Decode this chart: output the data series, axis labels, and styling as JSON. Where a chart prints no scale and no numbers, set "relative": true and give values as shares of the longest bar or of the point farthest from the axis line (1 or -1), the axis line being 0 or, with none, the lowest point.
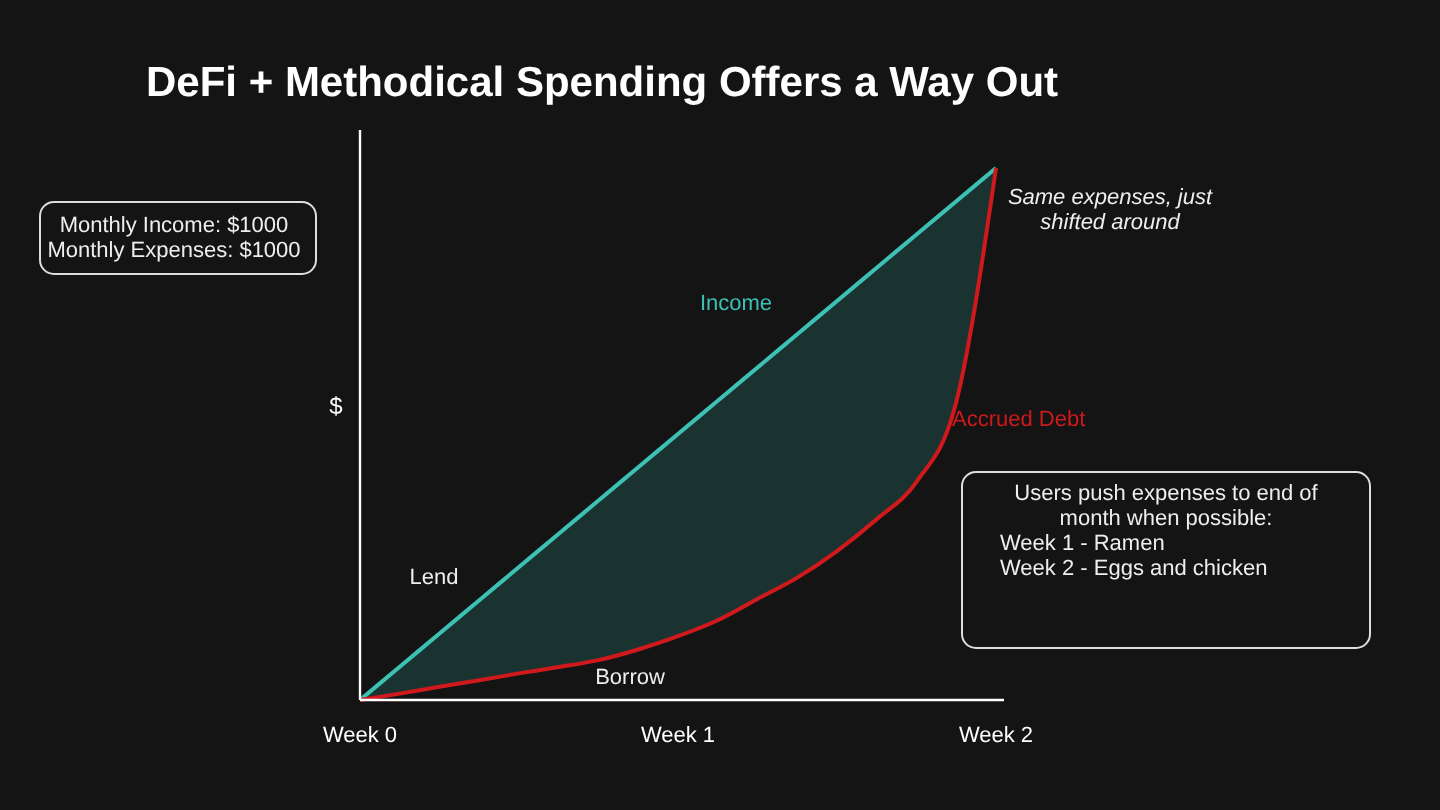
{
  "chart_data": {
    "type": "line",
    "title": "DeFi + Methodical Spending Offers a Way Out",
    "ylabel": "$",
    "relative": true,
    "legend": false,
    "grid": false,
    "categories": [
      "Week 0",
      null,
      null,
      null,
      null,
      null,
      null,
      null,
      "Week 1",
      null,
      null,
      null,
      null,
      null,
      null,
      null,
      "Week 2"
    ],
    "series": [
      {
        "name": "Income",
        "color": "#3cc1b4",
        "values": [
          0,
          0.0625,
          0.125,
          0.1875,
          0.25,
          0.3125,
          0.375,
          0.4375,
          0.5,
          0.5625,
          0.625,
          0.6875,
          0.75,
          0.8125,
          0.875,
          0.9375,
          1
        ],
        "lower": [
          0,
          0.012,
          0.025,
          0.037,
          0.05,
          0.062,
          0.075,
          0.095,
          0.12,
          0.15,
          0.19,
          0.23,
          0.28,
          0.34,
          0.41,
          0.56,
          1
        ],
        "upper": [
          0,
          0.0625,
          0.125,
          0.1875,
          0.25,
          0.3125,
          0.375,
          0.4375,
          0.5,
          0.5625,
          0.625,
          0.6875,
          0.75,
          0.8125,
          0.875,
          0.9375,
          1
        ]
      },
      {
        "name": "Accrued Debt",
        "color": "#d0191c",
        "values": [
          0,
          0.012,
          0.025,
          0.037,
          0.05,
          0.062,
          0.075,
          0.095,
          0.12,
          0.15,
          0.19,
          0.23,
          0.28,
          0.34,
          0.41,
          0.56,
          1
        ]
      }
    ],
    "annotations": [
      "Lend",
      "Borrow",
      "Same expenses, just shifted around",
      "Monthly Income: $1000\nMonthly Expenses: $1000",
      "Users push expenses to end of month when possible:\nWeek 1 - Ramen\nWeek 2 - Eggs and chicken"
    ]
  }
}
